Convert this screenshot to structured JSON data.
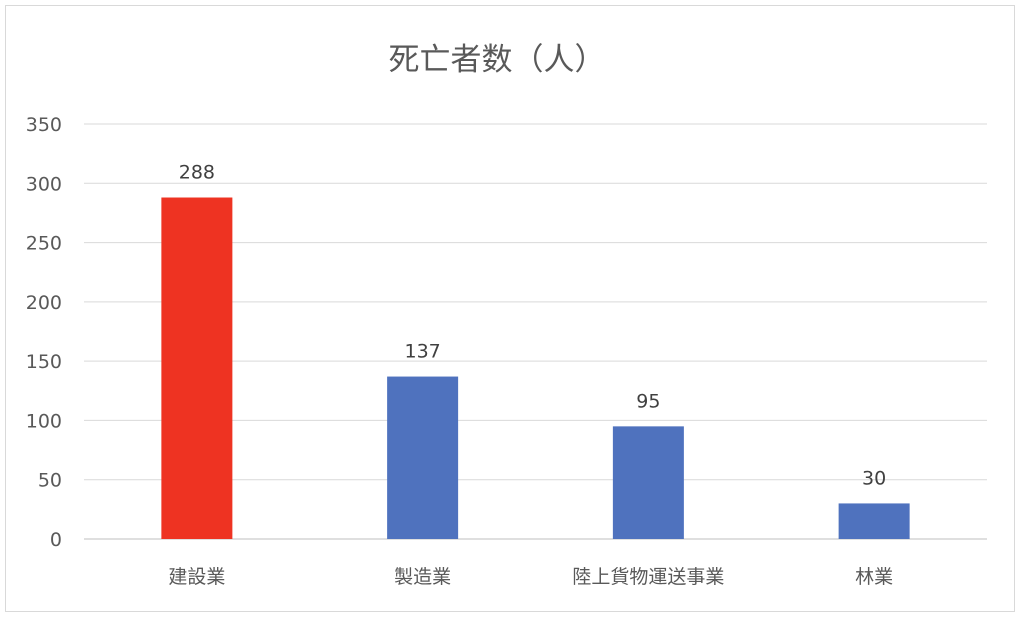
{
  "chart_data": {
    "type": "bar",
    "title": "死亡者数（人）",
    "categories": [
      "建設業",
      "製造業",
      "陸上貨物運送事業",
      "林業"
    ],
    "values": [
      288,
      137,
      95,
      30
    ],
    "bar_colors": [
      "#ee3322",
      "#4f72be",
      "#4f72be",
      "#4f72be"
    ],
    "ylim": [
      0,
      350
    ],
    "yticks": [
      0,
      50,
      100,
      150,
      200,
      250,
      300,
      350
    ],
    "grid": true,
    "legend": "none",
    "xlabel": "",
    "ylabel": ""
  }
}
